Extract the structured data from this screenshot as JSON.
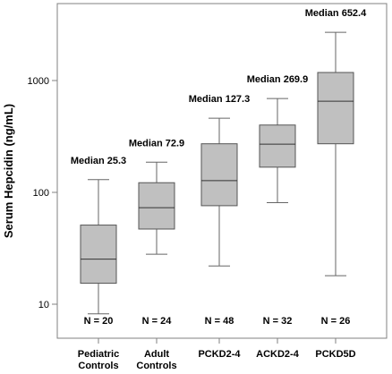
{
  "chart_data": {
    "type": "box",
    "ylabel": "Serum Hepcidin (ng/mL)",
    "yscale": "log",
    "ylim": [
      6,
      5000
    ],
    "yticks": [
      10,
      100,
      1000
    ],
    "ytick_labels": [
      "10",
      "100",
      "1000"
    ],
    "categories": [
      {
        "label_lines": [
          "Pediatric",
          "Controls"
        ],
        "min": 8.2,
        "q1": 15.4,
        "median": 25.3,
        "q3": 51,
        "max": 130,
        "median_label": "Median 25.3",
        "n_label": "N = 20"
      },
      {
        "label_lines": [
          "Adult",
          "Controls"
        ],
        "min": 28,
        "q1": 47,
        "median": 72.9,
        "q3": 122,
        "max": 186,
        "median_label": "Median 72.9",
        "n_label": "N = 24"
      },
      {
        "label_lines": [
          "PCKD2-4"
        ],
        "min": 22,
        "q1": 76,
        "median": 127.3,
        "q3": 272,
        "max": 460,
        "median_label": "Median 127.3",
        "n_label": "N = 48"
      },
      {
        "label_lines": [
          "ACKD2-4"
        ],
        "min": 81,
        "q1": 168,
        "median": 269.9,
        "q3": 400,
        "max": 690,
        "median_label": "Median 269.9",
        "n_label": "N = 32"
      },
      {
        "label_lines": [
          "PCKD5D"
        ],
        "min": 18,
        "q1": 272,
        "median": 652.4,
        "q3": 1180,
        "max": 2700,
        "median_label": "Median 652.4",
        "n_label": "N = 26"
      }
    ],
    "box_fill": "#c0c0c0",
    "box_stroke": "#555555",
    "whisker_color": "#666666"
  }
}
